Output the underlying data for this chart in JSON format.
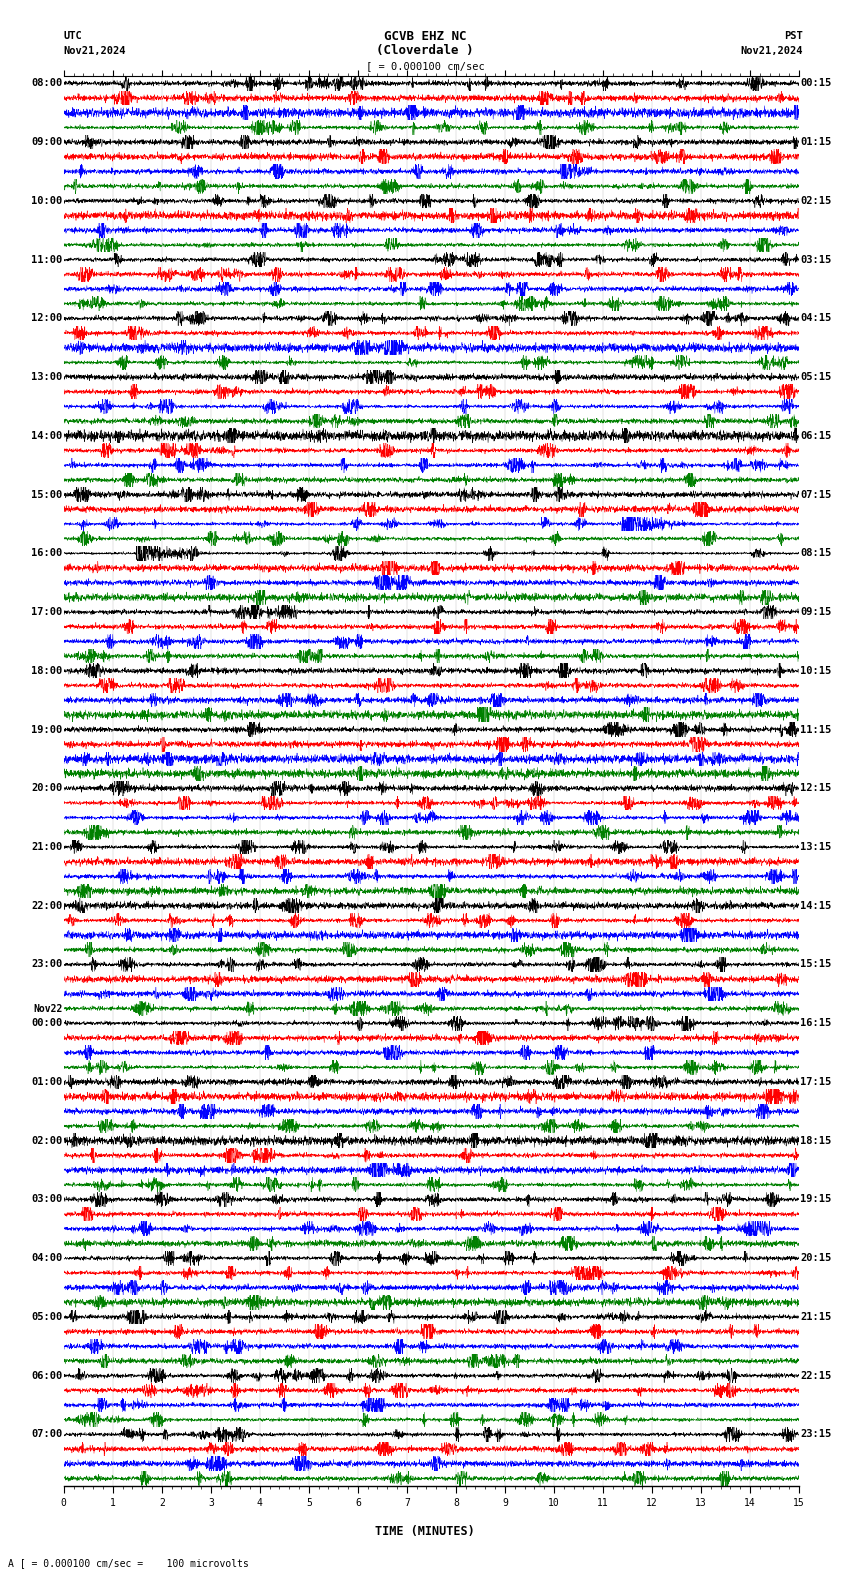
{
  "title_line1": "GCVB EHZ NC",
  "title_line2": "(Cloverdale )",
  "scale_label": "[ = 0.000100 cm/sec",
  "left_timezone": "UTC",
  "left_date": "Nov21,2024",
  "right_timezone": "PST",
  "right_date": "Nov21,2024",
  "bottom_label": "TIME (MINUTES)",
  "bottom_note": "A [ = 0.000100 cm/sec =    100 microvolts",
  "trace_colors": [
    "black",
    "red",
    "blue",
    "green"
  ],
  "utc_labels": [
    "08:00",
    "09:00",
    "10:00",
    "11:00",
    "12:00",
    "13:00",
    "14:00",
    "15:00",
    "16:00",
    "17:00",
    "18:00",
    "19:00",
    "20:00",
    "21:00",
    "22:00",
    "23:00",
    "Nov22\n00:00",
    "01:00",
    "02:00",
    "03:00",
    "04:00",
    "05:00",
    "06:00",
    "07:00"
  ],
  "pst_labels": [
    "00:15",
    "01:15",
    "02:15",
    "03:15",
    "04:15",
    "05:15",
    "06:15",
    "07:15",
    "08:15",
    "09:15",
    "10:15",
    "11:15",
    "12:15",
    "13:15",
    "14:15",
    "15:15",
    "16:15",
    "17:15",
    "18:15",
    "19:15",
    "20:15",
    "21:15",
    "22:15",
    "23:15"
  ],
  "n_rows": 24,
  "n_traces_per_row": 4,
  "minutes_per_row": 15,
  "fig_width": 8.5,
  "fig_height": 15.84,
  "background_color": "white",
  "x_ticks": [
    0,
    1,
    2,
    3,
    4,
    5,
    6,
    7,
    8,
    9,
    10,
    11,
    12,
    13,
    14,
    15
  ],
  "title_fontsize": 9,
  "label_fontsize": 7.5,
  "tick_fontsize": 7
}
